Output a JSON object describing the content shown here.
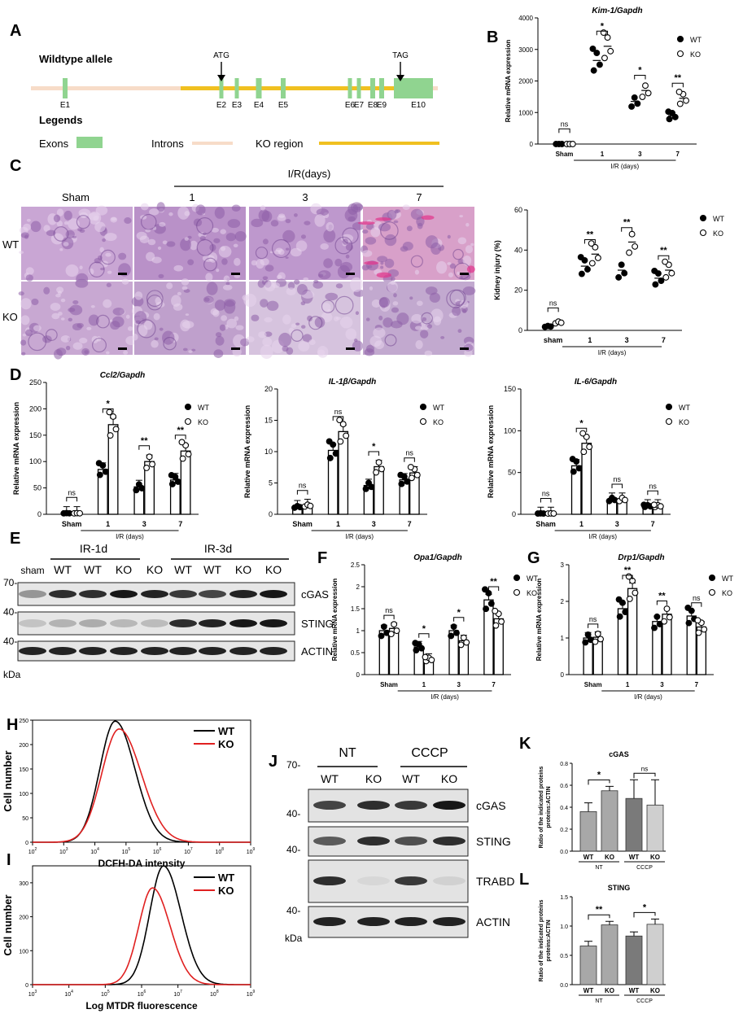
{
  "panel_labels": {
    "A": "A",
    "B": "B",
    "C": "C",
    "D": "D",
    "E": "E",
    "F": "F",
    "G": "G",
    "H": "H",
    "I": "I",
    "J": "J",
    "K": "K",
    "L": "L"
  },
  "gene_map": {
    "allele_label": "Wildtype allele",
    "atg": "ATG",
    "tag": "TAG",
    "exons": [
      "E1",
      "E2",
      "E3",
      "E4",
      "E5",
      "E6",
      "E7",
      "E8",
      "E9",
      "E10"
    ],
    "legends_title": "Legends",
    "legend_exons": "Exons",
    "legend_introns": "Introns",
    "legend_ko": "KO region",
    "colors": {
      "exon": "#90d490",
      "intron": "#f7dcc8",
      "ko": "#f0c020"
    }
  },
  "histology": {
    "group_title": "I/R(days)",
    "columns": [
      "Sham",
      "1",
      "3",
      "7"
    ],
    "rows": [
      "WT",
      "KO"
    ]
  },
  "western_E": {
    "lane_groups": [
      "IR-1d",
      "IR-3d"
    ],
    "lanes": [
      "sham",
      "WT",
      "WT",
      "KO",
      "KO",
      "WT",
      "WT",
      "KO",
      "KO"
    ],
    "markers": [
      "70-",
      "40-",
      "40-"
    ],
    "proteins": [
      "cGAS",
      "STING",
      "ACTIN"
    ],
    "unit": "kDa"
  },
  "western_J": {
    "groups": [
      "NT",
      "CCCP"
    ],
    "lanes": [
      "WT",
      "KO",
      "WT",
      "KO"
    ],
    "markers": [
      "70-",
      "40-",
      "40-",
      "40-"
    ],
    "proteins": [
      "cGAS",
      "STING",
      "TRABD",
      "ACTIN"
    ],
    "unit": "kDa"
  },
  "chart_data": [
    {
      "id": "B",
      "type": "bar",
      "title": "Kim-1/Gapdh",
      "ylabel": "Relative mRNA expression",
      "ylim": [
        0,
        4000
      ],
      "yticks": [
        0,
        1000,
        2000,
        3000,
        4000
      ],
      "categories": [
        "Sham",
        "1",
        "3",
        "7"
      ],
      "group_label": "I/R (days)",
      "legend": "top-right",
      "bars": "none",
      "series": [
        {
          "name": "WT",
          "values": [
            0,
            2650,
            1350,
            900
          ]
        },
        {
          "name": "KO",
          "values": [
            0,
            3100,
            1700,
            1450
          ]
        }
      ],
      "significance": [
        "ns",
        "*",
        "*",
        "**"
      ]
    },
    {
      "id": "C",
      "type": "scatter",
      "title": "",
      "ylabel": "Kidney injury (%)",
      "ylim": [
        0,
        60
      ],
      "yticks": [
        0,
        20,
        40,
        60
      ],
      "categories": [
        "sham",
        "1",
        "3",
        "7"
      ],
      "group_label": "I/R (days)",
      "legend": "top-right",
      "bars": "none",
      "series": [
        {
          "name": "WT",
          "values": [
            2,
            32,
            30,
            26
          ]
        },
        {
          "name": "KO",
          "values": [
            4,
            38,
            44,
            30
          ]
        }
      ],
      "significance": [
        "ns",
        "**",
        "**",
        "**"
      ]
    },
    {
      "id": "D1",
      "type": "bar",
      "title": "Ccl2/Gapdh",
      "ylabel": "Relative mRNA expression",
      "ylim": [
        0,
        250
      ],
      "yticks": [
        0,
        50,
        100,
        150,
        200,
        250
      ],
      "categories": [
        "Sham",
        "1",
        "3",
        "7"
      ],
      "group_label": "I/R (days)",
      "legend": "top-right",
      "bars": "fill",
      "series": [
        {
          "name": "WT",
          "values": [
            2,
            85,
            52,
            65
          ]
        },
        {
          "name": "KO",
          "values": [
            2,
            170,
            100,
            120
          ]
        }
      ],
      "significance": [
        "ns",
        "*",
        "**",
        "**"
      ]
    },
    {
      "id": "D2",
      "type": "bar",
      "title": "IL-1β/Gapdh",
      "ylabel": "Relative mRNA expression",
      "ylim": [
        0,
        20
      ],
      "yticks": [
        0,
        5,
        10,
        15,
        20
      ],
      "categories": [
        "Sham",
        "1",
        "3",
        "7"
      ],
      "group_label": "I/R (days)",
      "legend": "top-right",
      "bars": "fill",
      "series": [
        {
          "name": "WT",
          "values": [
            1.2,
            10.2,
            4.6,
            5.5
          ]
        },
        {
          "name": "KO",
          "values": [
            1.4,
            13.2,
            7.6,
            6.6
          ]
        }
      ],
      "significance": [
        "ns",
        "ns",
        "*",
        "ns"
      ]
    },
    {
      "id": "D3",
      "type": "bar",
      "title": "IL-6/Gapdh",
      "ylabel": "Relative mRNA expression",
      "ylim": [
        0,
        150
      ],
      "yticks": [
        0,
        50,
        100,
        150
      ],
      "categories": [
        "Sham",
        "1",
        "3",
        "7"
      ],
      "group_label": "I/R (days)",
      "legend": "top-right",
      "bars": "fill",
      "series": [
        {
          "name": "WT",
          "values": [
            1,
            58,
            18,
            10
          ]
        },
        {
          "name": "KO",
          "values": [
            1,
            85,
            18,
            10
          ]
        }
      ],
      "significance": [
        "ns",
        "*",
        "",
        ""
      ],
      "extra_ns": [
        2,
        3
      ]
    },
    {
      "id": "F",
      "type": "bar",
      "title": "Opa1/Gapdh",
      "ylabel": "Relative mRNA expression",
      "ylim": [
        0,
        2.5
      ],
      "yticks": [
        0.0,
        0.5,
        1.0,
        1.5,
        2.0,
        2.5
      ],
      "categories": [
        "Sham",
        "1",
        "3",
        "7"
      ],
      "group_label": "I/R (days)",
      "legend": "top-right",
      "bars": "fill",
      "series": [
        {
          "name": "WT",
          "values": [
            1.0,
            0.63,
            1.0,
            1.7
          ]
        },
        {
          "name": "KO",
          "values": [
            1.05,
            0.35,
            0.77,
            1.27
          ]
        }
      ],
      "significance": [
        "ns",
        "*",
        "*",
        "**"
      ]
    },
    {
      "id": "G",
      "type": "bar",
      "title": "Drp1/Gapdh",
      "ylabel": "Relative mRNA expression",
      "ylim": [
        0,
        3
      ],
      "yticks": [
        0,
        1,
        2,
        3
      ],
      "categories": [
        "Sham",
        "1",
        "3",
        "7"
      ],
      "group_label": "I/R (days)",
      "legend": "top-right",
      "bars": "fill",
      "series": [
        {
          "name": "WT",
          "values": [
            1.0,
            1.8,
            1.45,
            1.6
          ]
        },
        {
          "name": "KO",
          "values": [
            1.02,
            2.35,
            1.65,
            1.3
          ]
        }
      ],
      "significance": [
        "ns",
        "**",
        "**",
        "ns"
      ]
    },
    {
      "id": "H",
      "type": "line",
      "title": "",
      "xlabel": "DCFH-DA intensity",
      "ylabel": "Cell number",
      "ylim": [
        0,
        250
      ],
      "yticks": [
        0,
        50,
        100,
        150,
        200,
        250
      ],
      "xscale": "log",
      "xlim": [
        100,
        1000000000
      ],
      "legend": "top-right",
      "series": [
        {
          "name": "WT",
          "color": "#000000",
          "peak_x": 45000,
          "peak_y": 248,
          "width": 0.55
        },
        {
          "name": "KO",
          "color": "#e02020",
          "peak_x": 60000,
          "peak_y": 232,
          "width": 0.62
        }
      ]
    },
    {
      "id": "I",
      "type": "line",
      "title": "",
      "xlabel": "Log MTDR fluorescence",
      "ylabel": "Cell number",
      "ylim": [
        0,
        350
      ],
      "yticks": [
        0,
        100,
        200,
        300
      ],
      "xscale": "log",
      "xlim": [
        1000,
        1000000000
      ],
      "legend": "top-right",
      "series": [
        {
          "name": "WT",
          "color": "#000000",
          "peak_x": 4000000,
          "peak_y": 350,
          "width": 0.42
        },
        {
          "name": "KO",
          "color": "#e02020",
          "peak_x": 2000000,
          "peak_y": 285,
          "width": 0.42
        }
      ]
    },
    {
      "id": "K",
      "type": "bar",
      "title": "cGAS",
      "ylabel": "Ratio of the indicated proteins:ACTIN",
      "ylim": [
        0,
        0.8
      ],
      "yticks": [
        0.0,
        0.2,
        0.4,
        0.6,
        0.8
      ],
      "categories": [
        "WT",
        "KO",
        "WT",
        "KO"
      ],
      "groups": [
        "NT",
        "CCCP"
      ],
      "values": [
        0.36,
        0.55,
        0.48,
        0.42
      ],
      "errors": [
        0.08,
        0.04,
        0.17,
        0.23
      ],
      "significance": [
        "*",
        "ns"
      ]
    },
    {
      "id": "L",
      "type": "bar",
      "title": "STING",
      "ylabel": "Ratio of the indicated proteins:ACTIN",
      "ylim": [
        0,
        1.5
      ],
      "yticks": [
        0.0,
        0.5,
        1.0,
        1.5
      ],
      "categories": [
        "WT",
        "KO",
        "WT",
        "KO"
      ],
      "groups": [
        "NT",
        "CCCP"
      ],
      "values": [
        0.66,
        1.02,
        0.83,
        1.03
      ],
      "errors": [
        0.08,
        0.06,
        0.07,
        0.09
      ],
      "significance": [
        "**",
        "*"
      ]
    }
  ]
}
